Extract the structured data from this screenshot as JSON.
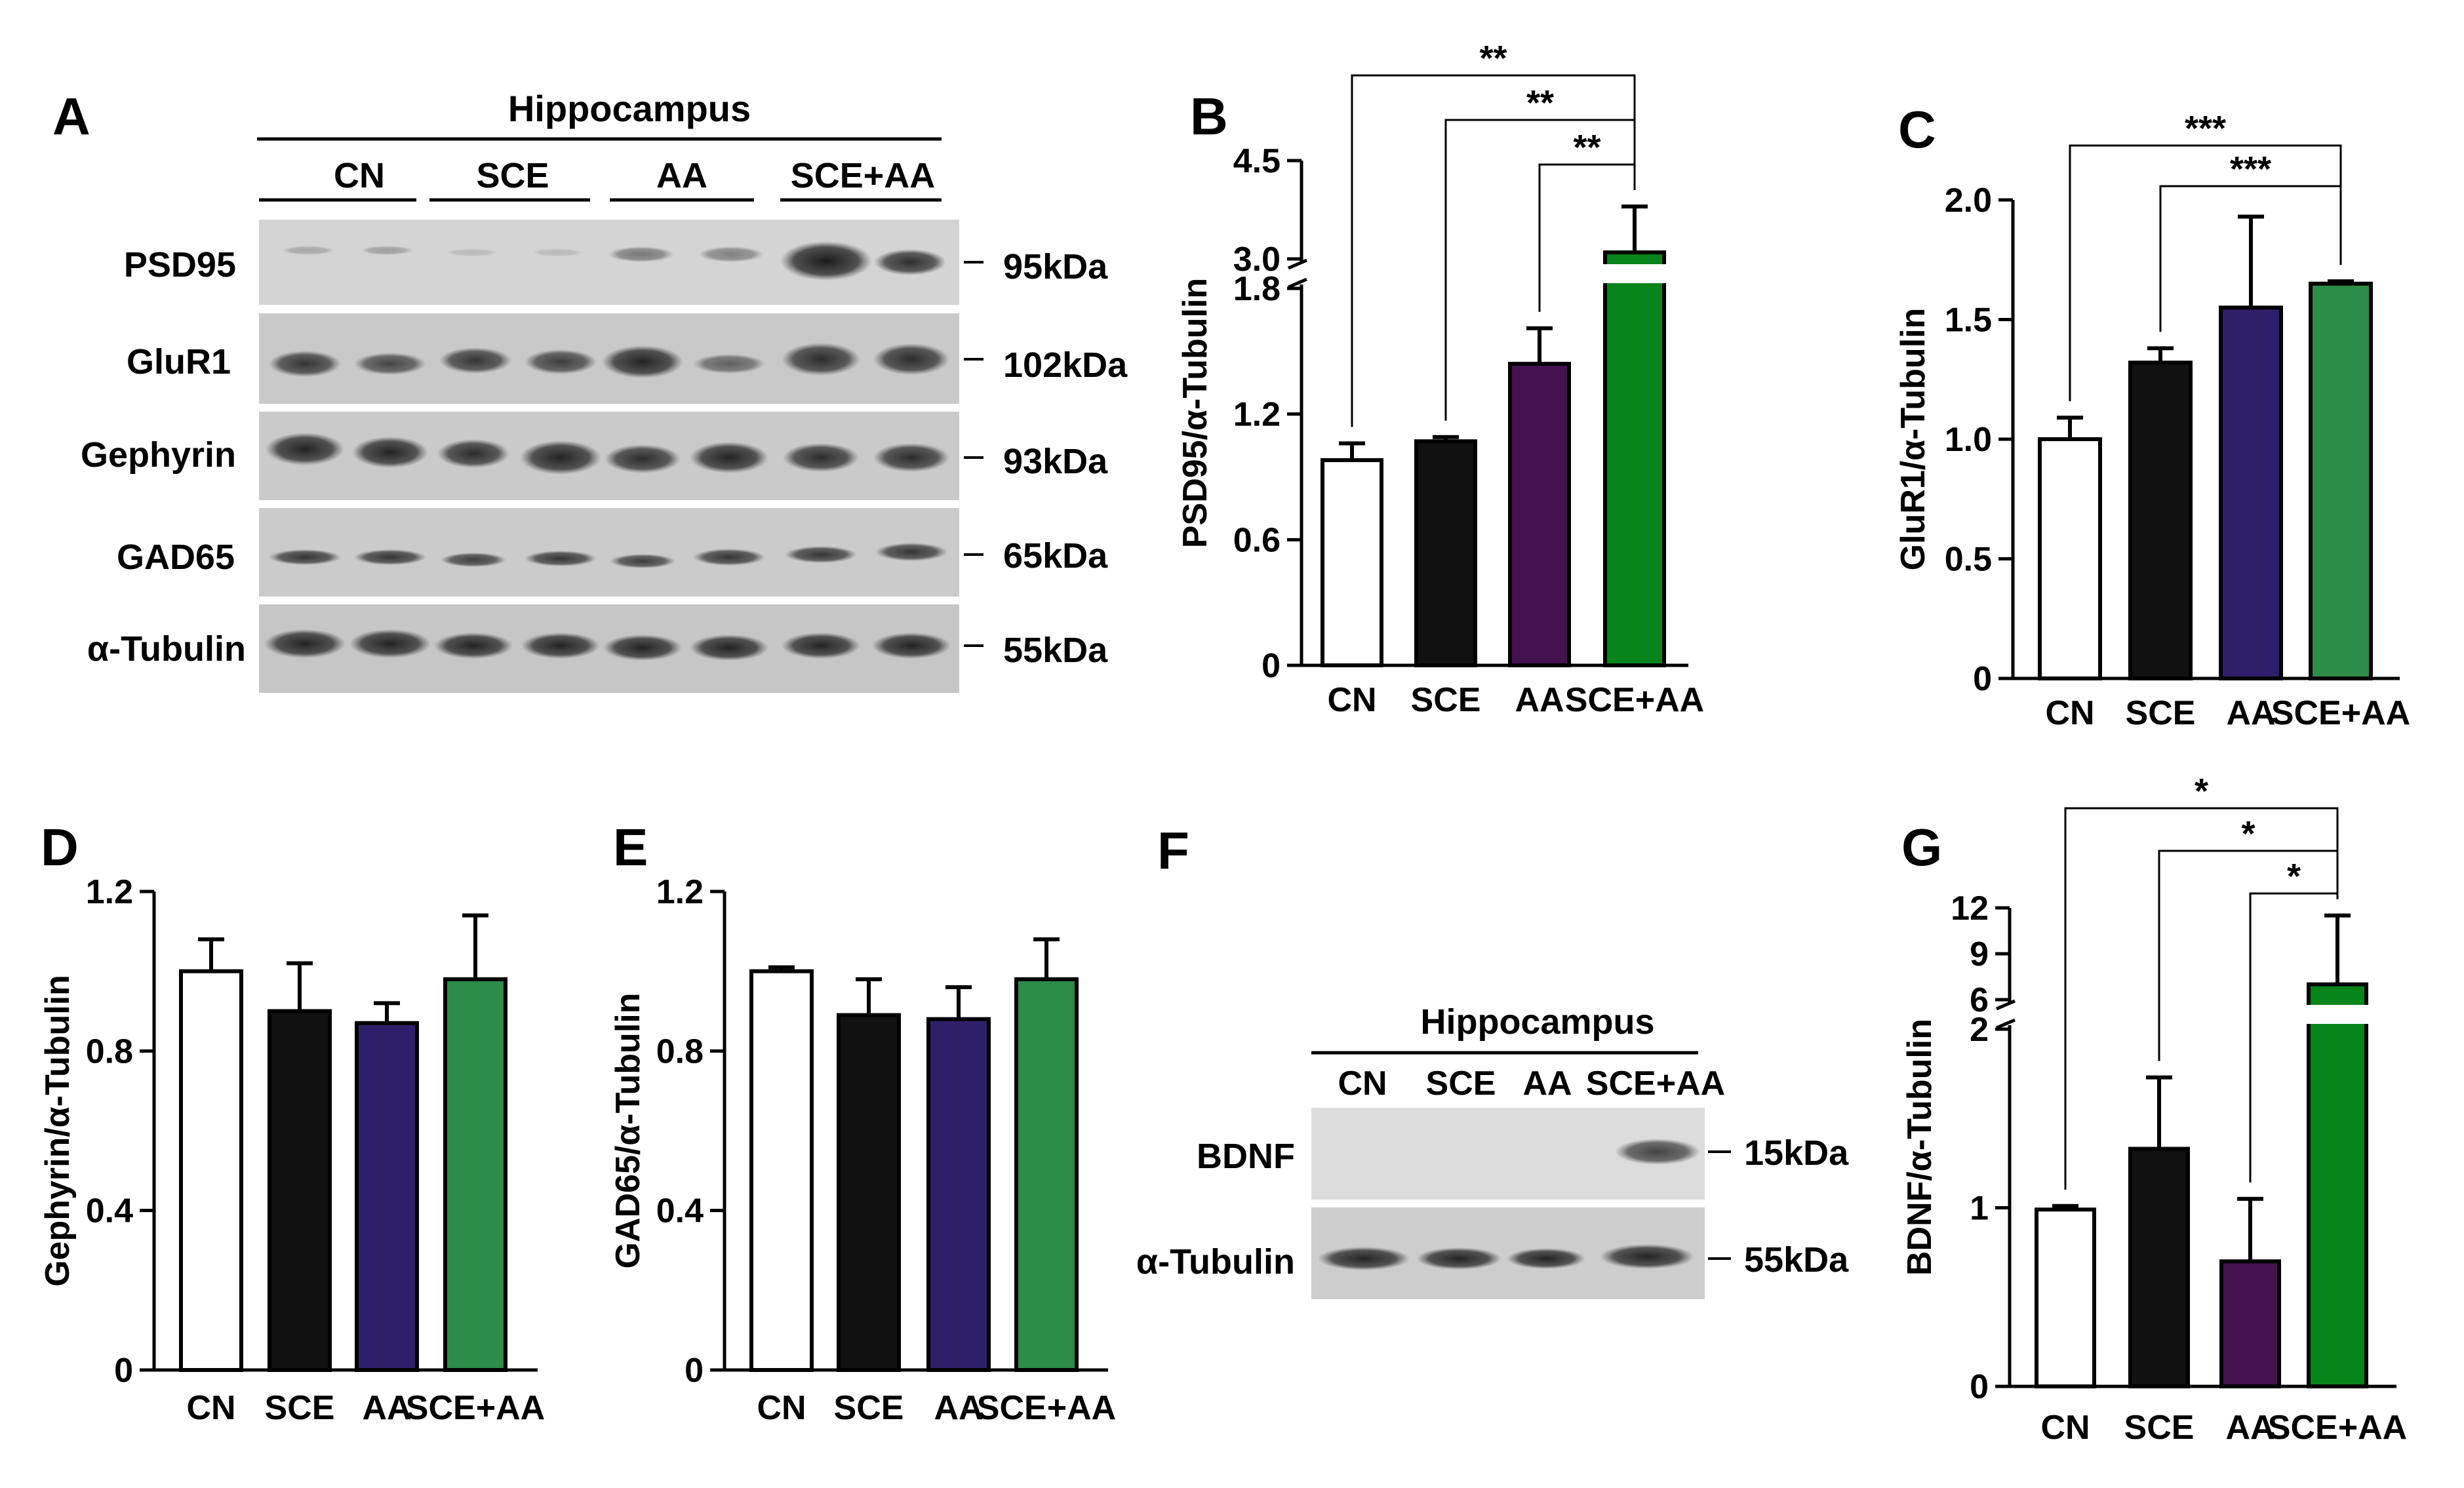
{
  "groups": [
    "CN",
    "SCE",
    "AA",
    "SCE+AA"
  ],
  "colors": {
    "cn": "#ffffff",
    "sce": "#111111",
    "aa_purple": "#43124f",
    "aa_indigo": "#2f1f6a",
    "sce_aa_green": "#07841a",
    "sce_aa_lightgreen": "#2c8c48"
  },
  "panels": {
    "A": {
      "letter": "A",
      "title": "Hippocampus",
      "groups": [
        "CN",
        "SCE",
        "AA",
        "SCE+AA"
      ],
      "rows": [
        {
          "protein": "PSD95",
          "size": "95kDa"
        },
        {
          "protein": "GluR1",
          "size": "102kDa"
        },
        {
          "protein": "Gephyrin",
          "size": "93kDa"
        },
        {
          "protein": "GAD65",
          "size": "65kDa"
        },
        {
          "protein": "α-Tubulin",
          "size": "55kDa"
        }
      ]
    },
    "F": {
      "letter": "F",
      "title": "Hippocampus",
      "groups": [
        "CN",
        "SCE",
        "AA",
        "SCE+AA"
      ],
      "rows": [
        {
          "protein": "BDNF",
          "size": "15kDa"
        },
        {
          "protein": "α-Tubulin",
          "size": "55kDa"
        }
      ]
    }
  },
  "chart_data": [
    {
      "panel": "B",
      "type": "bar",
      "categories": [
        "CN",
        "SCE",
        "AA",
        "SCE+AA"
      ],
      "values": [
        0.98,
        1.07,
        1.44,
        3.1
      ],
      "errors": [
        0.08,
        0.02,
        0.17,
        0.7
      ],
      "ylabel": "PSD95/α-Tubulin",
      "axis_break": {
        "lower": [
          0,
          1.8
        ],
        "upper": [
          3.0,
          4.5
        ]
      },
      "yticks": [
        "0",
        "0.6",
        "1.2",
        "1.8",
        "3.0",
        "4.5"
      ],
      "significance": [
        {
          "from": "CN",
          "to": "SCE+AA",
          "label": "**"
        },
        {
          "from": "SCE",
          "to": "SCE+AA",
          "label": "**"
        },
        {
          "from": "AA",
          "to": "SCE+AA",
          "label": "**"
        }
      ],
      "colors": [
        "#ffffff",
        "#111111",
        "#43124f",
        "#07841a"
      ]
    },
    {
      "panel": "C",
      "type": "bar",
      "categories": [
        "CN",
        "SCE",
        "AA",
        "SCE+AA"
      ],
      "values": [
        1.0,
        1.32,
        1.55,
        1.65
      ],
      "errors": [
        0.09,
        0.06,
        0.38,
        0.01
      ],
      "ylabel": "GluR1/α-Tubulin",
      "ylim": [
        0,
        2.0
      ],
      "yticks": [
        "0",
        "0.5",
        "1.0",
        "1.5",
        "2.0"
      ],
      "significance": [
        {
          "from": "CN",
          "to": "SCE+AA",
          "label": "***"
        },
        {
          "from": "SCE",
          "to": "SCE+AA",
          "label": "***"
        }
      ],
      "colors": [
        "#ffffff",
        "#111111",
        "#2f1f6a",
        "#2c8c48"
      ]
    },
    {
      "panel": "D",
      "type": "bar",
      "categories": [
        "CN",
        "SCE",
        "AA",
        "SCE+AA"
      ],
      "values": [
        1.0,
        0.9,
        0.87,
        0.98
      ],
      "errors": [
        0.08,
        0.12,
        0.05,
        0.16
      ],
      "ylabel": "Gephyrin/α-Tubulin",
      "ylim": [
        0,
        1.2
      ],
      "yticks": [
        "0",
        "0.4",
        "0.8",
        "1.2"
      ],
      "significance": [],
      "colors": [
        "#ffffff",
        "#111111",
        "#2f1f6a",
        "#2c8c48"
      ]
    },
    {
      "panel": "E",
      "type": "bar",
      "categories": [
        "CN",
        "SCE",
        "AA",
        "SCE+AA"
      ],
      "values": [
        1.0,
        0.89,
        0.88,
        0.98
      ],
      "errors": [
        0.01,
        0.09,
        0.08,
        0.1
      ],
      "ylabel": "GAD65/α-Tubulin",
      "ylim": [
        0,
        1.2
      ],
      "yticks": [
        "0",
        "0.4",
        "0.8",
        "1.2"
      ],
      "significance": [],
      "colors": [
        "#ffffff",
        "#111111",
        "#2f1f6a",
        "#2c8c48"
      ]
    },
    {
      "panel": "G",
      "type": "bar",
      "categories": [
        "CN",
        "SCE",
        "AA",
        "SCE+AA"
      ],
      "values": [
        0.99,
        1.33,
        0.7,
        7.0
      ],
      "errors": [
        0.02,
        0.4,
        0.35,
        4.5
      ],
      "ylabel": "BDNF/α-Tubulin",
      "axis_break": {
        "lower": [
          0,
          2
        ],
        "upper": [
          6,
          12
        ]
      },
      "yticks": [
        "0",
        "1",
        "2",
        "6",
        "9",
        "12"
      ],
      "significance": [
        {
          "from": "CN",
          "to": "SCE+AA",
          "label": "*"
        },
        {
          "from": "SCE",
          "to": "SCE+AA",
          "label": "*"
        },
        {
          "from": "AA",
          "to": "SCE+AA",
          "label": "*"
        }
      ],
      "colors": [
        "#ffffff",
        "#111111",
        "#43124f",
        "#07841a"
      ]
    }
  ]
}
